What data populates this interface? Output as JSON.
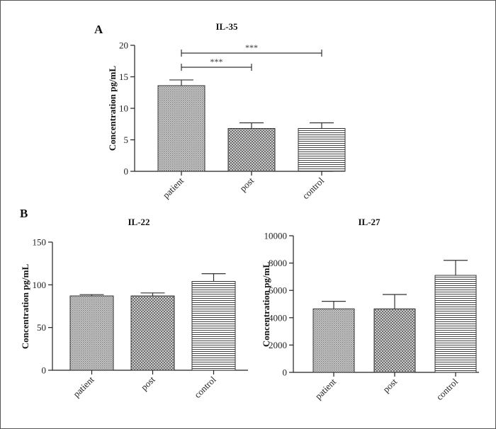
{
  "chart_data": [
    {
      "panel": "A",
      "type": "bar",
      "title": "IL-35",
      "xlabel": "",
      "ylabel": "Concentration pg/mL",
      "categories": [
        "patient",
        "post",
        "control"
      ],
      "values": [
        13.6,
        6.8,
        6.8
      ],
      "errors": [
        0.9,
        0.9,
        0.9
      ],
      "ylim": [
        0,
        20
      ],
      "yticks": [
        0,
        5,
        10,
        15,
        20
      ],
      "grid": false,
      "annotations": [
        {
          "from": "patient",
          "to": "post",
          "label": "***"
        },
        {
          "from": "patient",
          "to": "control",
          "label": "***"
        }
      ]
    },
    {
      "panel": "B",
      "type": "bar",
      "title": "IL-22",
      "xlabel": "",
      "ylabel": "Concentration pg/mL",
      "categories": [
        "patient",
        "post",
        "control"
      ],
      "values": [
        87,
        87,
        104
      ],
      "errors": [
        1.5,
        3.5,
        9
      ],
      "ylim": [
        0,
        150
      ],
      "yticks": [
        0,
        50,
        100,
        150
      ],
      "grid": false
    },
    {
      "panel": "",
      "type": "bar",
      "title": "IL-27",
      "xlabel": "",
      "ylabel": "Concentration pg/mL",
      "categories": [
        "patient",
        "post",
        "control"
      ],
      "values": [
        4650,
        4650,
        7100
      ],
      "errors": [
        550,
        1050,
        1100
      ],
      "ylim": [
        0,
        10000
      ],
      "yticks": [
        0,
        2000,
        4000,
        6000,
        8000,
        10000
      ],
      "grid": false
    }
  ],
  "colors": {
    "bar_stroke": "#333333",
    "fill_pattern": "#8a8a8a",
    "frame": "#555555"
  }
}
